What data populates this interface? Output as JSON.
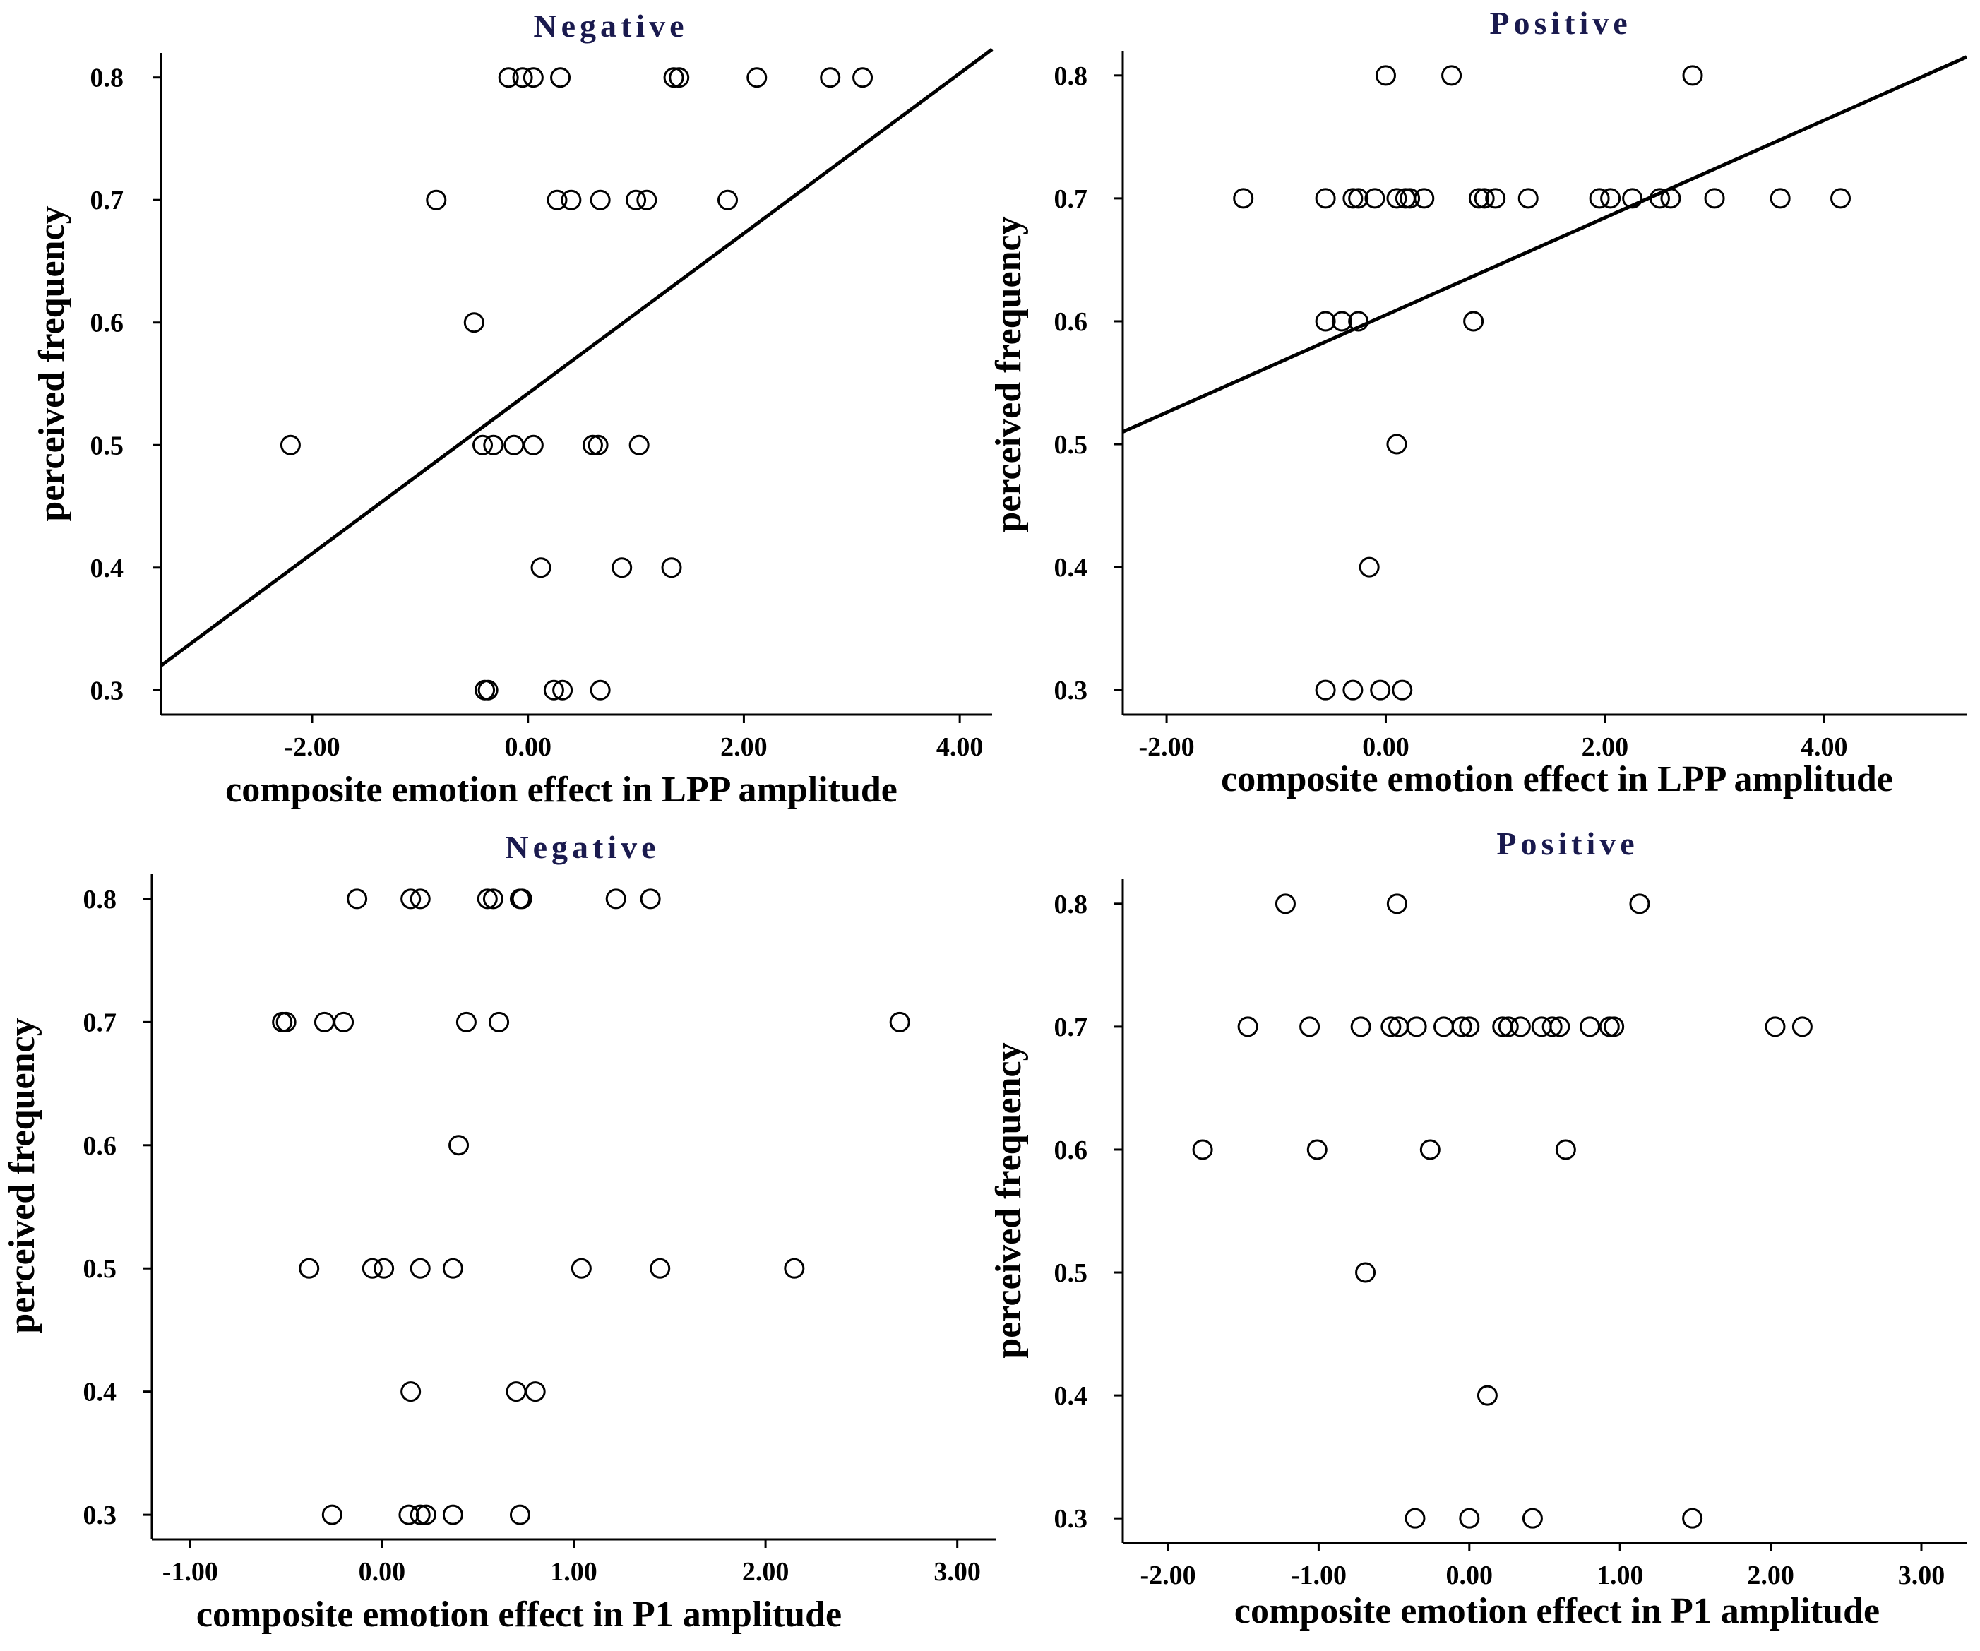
{
  "figure_title": "",
  "chart_data": [
    {
      "type": "scatter",
      "title": "Negative",
      "xlabel": "composite emotion effect in LPP amplitude",
      "ylabel": "perceived frequency",
      "xlim": [
        -3.4,
        4.3
      ],
      "ylim": [
        0.28,
        0.82
      ],
      "xticks": [
        -2,
        0,
        2,
        4
      ],
      "xtick_labels": [
        "-2.00",
        "0.00",
        "2.00",
        "4.00"
      ],
      "yticks": [
        0.3,
        0.4,
        0.5,
        0.6,
        0.7,
        0.8
      ],
      "ytick_labels": [
        "0.3",
        "0.4",
        "0.5",
        "0.6",
        "0.7",
        "0.8"
      ],
      "fit_line": {
        "x": [
          -3.4,
          4.3
        ],
        "y": [
          0.32,
          0.823
        ]
      },
      "points": {
        "x": [
          -0.18,
          -0.05,
          0.05,
          0.3,
          1.35,
          1.4,
          2.12,
          2.8,
          3.1,
          -0.85,
          0.27,
          0.4,
          0.67,
          1.0,
          1.1,
          1.85,
          -0.5,
          -2.2,
          -0.42,
          -0.32,
          -0.13,
          0.05,
          0.6,
          0.65,
          1.03,
          0.12,
          0.87,
          1.33,
          -0.4,
          -0.37,
          0.24,
          0.32,
          0.67
        ],
        "y": [
          0.8,
          0.8,
          0.8,
          0.8,
          0.8,
          0.8,
          0.8,
          0.8,
          0.8,
          0.7,
          0.7,
          0.7,
          0.7,
          0.7,
          0.7,
          0.7,
          0.6,
          0.5,
          0.5,
          0.5,
          0.5,
          0.5,
          0.5,
          0.5,
          0.5,
          0.4,
          0.4,
          0.4,
          0.3,
          0.3,
          0.3,
          0.3,
          0.3
        ]
      }
    },
    {
      "type": "scatter",
      "title": "Positive",
      "xlabel": "composite emotion effect in LPP amplitude",
      "ylabel": "perceived frequency",
      "xlim": [
        -2.4,
        5.3
      ],
      "ylim": [
        0.28,
        0.82
      ],
      "xticks": [
        -2,
        0,
        2,
        4
      ],
      "xtick_labels": [
        "-2.00",
        "0.00",
        "2.00",
        "4.00"
      ],
      "yticks": [
        0.3,
        0.4,
        0.5,
        0.6,
        0.7,
        0.8
      ],
      "ytick_labels": [
        "0.3",
        "0.4",
        "0.5",
        "0.6",
        "0.7",
        "0.8"
      ],
      "fit_line": {
        "x": [
          -2.4,
          5.3
        ],
        "y": [
          0.51,
          0.815
        ]
      },
      "points": {
        "x": [
          0.0,
          0.6,
          2.8,
          -1.3,
          -0.55,
          -0.3,
          -0.25,
          -0.1,
          0.1,
          0.18,
          0.22,
          0.35,
          0.85,
          0.9,
          1.0,
          1.3,
          1.95,
          2.05,
          2.25,
          2.5,
          2.6,
          3.0,
          3.6,
          4.15,
          -0.55,
          -0.4,
          -0.25,
          0.8,
          0.1,
          -0.15,
          -0.55,
          -0.3,
          -0.05,
          0.15
        ],
        "y": [
          0.8,
          0.8,
          0.8,
          0.7,
          0.7,
          0.7,
          0.7,
          0.7,
          0.7,
          0.7,
          0.7,
          0.7,
          0.7,
          0.7,
          0.7,
          0.7,
          0.7,
          0.7,
          0.7,
          0.7,
          0.7,
          0.7,
          0.7,
          0.7,
          0.6,
          0.6,
          0.6,
          0.6,
          0.5,
          0.4,
          0.3,
          0.3,
          0.3,
          0.3
        ]
      }
    },
    {
      "type": "scatter",
      "title": "Negative",
      "xlabel": "composite emotion effect in P1 amplitude",
      "ylabel": "perceived frequency",
      "xlim": [
        -1.2,
        3.2
      ],
      "ylim": [
        0.28,
        0.82
      ],
      "xticks": [
        -1,
        0,
        1,
        2,
        3
      ],
      "xtick_labels": [
        "-1.00",
        "0.00",
        "1.00",
        "2.00",
        "3.00"
      ],
      "yticks": [
        0.3,
        0.4,
        0.5,
        0.6,
        0.7,
        0.8
      ],
      "ytick_labels": [
        "0.3",
        "0.4",
        "0.5",
        "0.6",
        "0.7",
        "0.8"
      ],
      "points": {
        "x": [
          -0.13,
          0.15,
          0.2,
          0.55,
          0.58,
          0.72,
          0.73,
          1.22,
          1.4,
          -0.52,
          -0.5,
          -0.3,
          -0.2,
          0.44,
          0.61,
          2.7,
          0.4,
          -0.38,
          -0.05,
          0.01,
          0.2,
          0.37,
          1.04,
          1.45,
          2.15,
          0.15,
          0.7,
          0.8,
          -0.26,
          0.14,
          0.2,
          0.23,
          0.37,
          0.72
        ],
        "y": [
          0.8,
          0.8,
          0.8,
          0.8,
          0.8,
          0.8,
          0.8,
          0.8,
          0.8,
          0.7,
          0.7,
          0.7,
          0.7,
          0.7,
          0.7,
          0.7,
          0.6,
          0.5,
          0.5,
          0.5,
          0.5,
          0.5,
          0.5,
          0.5,
          0.5,
          0.4,
          0.4,
          0.4,
          0.3,
          0.3,
          0.3,
          0.3,
          0.3,
          0.3
        ]
      }
    },
    {
      "type": "scatter",
      "title": "Positive",
      "xlabel": "composite emotion effect in P1 amplitude",
      "ylabel": "perceived frequency",
      "xlim": [
        -2.3,
        3.3
      ],
      "ylim": [
        0.28,
        0.82
      ],
      "xticks": [
        -2,
        -1,
        0,
        1,
        2,
        3
      ],
      "xtick_labels": [
        "-2.00",
        "-1.00",
        "0.00",
        "1.00",
        "2.00",
        "3.00"
      ],
      "yticks": [
        0.3,
        0.4,
        0.5,
        0.6,
        0.7,
        0.8
      ],
      "ytick_labels": [
        "0.3",
        "0.4",
        "0.5",
        "0.6",
        "0.7",
        "0.8"
      ],
      "points": {
        "x": [
          -1.22,
          -0.48,
          1.13,
          -1.47,
          -1.06,
          -0.72,
          -0.52,
          -0.47,
          -0.35,
          -0.17,
          -0.05,
          0.0,
          0.22,
          0.26,
          0.34,
          0.48,
          0.55,
          0.6,
          0.8,
          0.93,
          0.96,
          2.03,
          2.21,
          -1.77,
          -1.01,
          -0.26,
          0.64,
          -0.69,
          0.12,
          -0.36,
          0.0,
          0.42,
          1.48
        ],
        "y": [
          0.8,
          0.8,
          0.8,
          0.7,
          0.7,
          0.7,
          0.7,
          0.7,
          0.7,
          0.7,
          0.7,
          0.7,
          0.7,
          0.7,
          0.7,
          0.7,
          0.7,
          0.7,
          0.7,
          0.7,
          0.7,
          0.7,
          0.7,
          0.6,
          0.6,
          0.6,
          0.6,
          0.5,
          0.4,
          0.3,
          0.3,
          0.3,
          0.3
        ]
      }
    }
  ]
}
